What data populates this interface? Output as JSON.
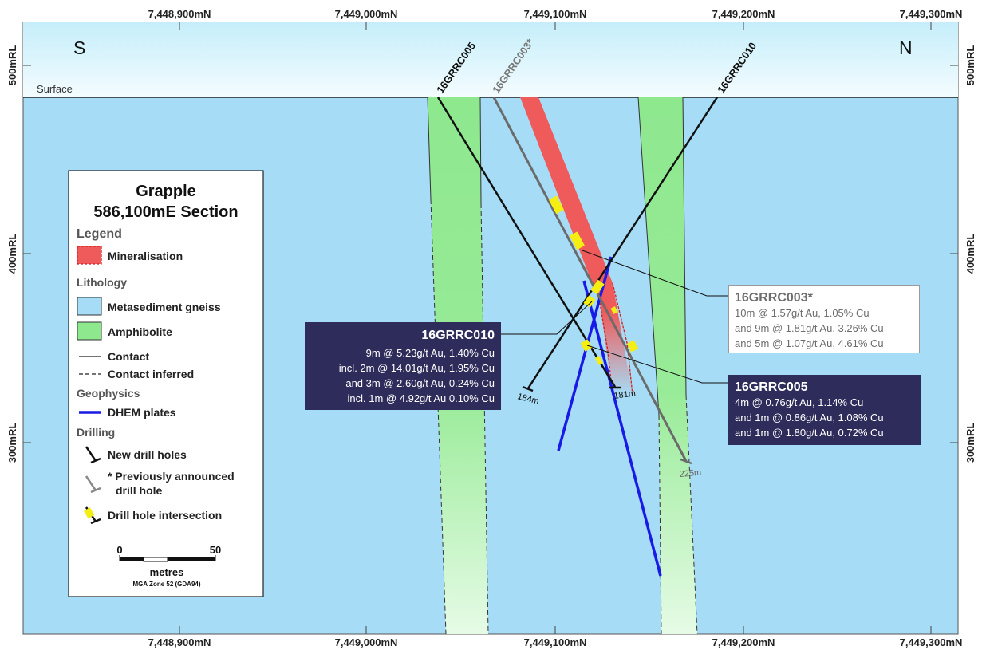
{
  "orientation": {
    "south": "S",
    "north": "N"
  },
  "surface_label": "Surface",
  "northing_ticks": [
    "7,448,900mN",
    "7,449,000mN",
    "7,449,100mN",
    "7,449,200mN",
    "7,449,300mN"
  ],
  "rl_ticks": [
    "500mRL",
    "400mRL",
    "300mRL"
  ],
  "drill_holes": [
    {
      "id": "16GRRC005",
      "end_depth": "181m",
      "status": "new"
    },
    {
      "id": "16GRRC003*",
      "end_depth": "225m",
      "status": "previously announced"
    },
    {
      "id": "16GRRC010",
      "end_depth": "184m",
      "status": "new"
    }
  ],
  "legend": {
    "title_line1": "Grapple",
    "title_line2": "586,100mE Section",
    "legend_heading": "Legend",
    "mineralisation": "Mineralisation",
    "lithology_heading": "Lithology",
    "metasediment": "Metasediment gneiss",
    "amphibolite": "Amphibolite",
    "contact": "Contact",
    "contact_inferred": "Contact inferred",
    "geophysics_heading": "Geophysics",
    "dhem": "DHEM plates",
    "drilling_heading": "Drilling",
    "new_holes": "New drill holes",
    "prev_line1": "* Previously announced",
    "prev_line2": "drill hole",
    "intersection": "Drill hole intersection",
    "scale_start": "0",
    "scale_end": "50",
    "scale_unit": "metres",
    "projection": "MGA Zone 52 (GDA94)"
  },
  "intercepts": {
    "rc010": {
      "title": "16GRRC010",
      "lines": [
        "9m @ 5.23g/t Au, 1.40% Cu",
        "incl. 2m @ 14.01g/t Au, 1.95% Cu",
        "and 3m @ 2.60g/t Au, 0.24% Cu",
        "incl. 1m @ 4.92g/t Au 0.10% Cu"
      ]
    },
    "rc003": {
      "title": "16GRRC003*",
      "lines": [
        "10m @ 1.57g/t Au, 1.05% Cu",
        "and 9m @ 1.81g/t Au, 3.26% Cu",
        "and 5m @ 1.07g/t Au, 4.61% Cu"
      ]
    },
    "rc005": {
      "title": "16GRRC005",
      "lines": [
        "4m @ 0.76g/t Au, 1.14% Cu",
        "and 1m @ 0.86g/t Au, 1.08% Cu",
        "and 1m @ 1.80g/t Au, 0.72% Cu"
      ]
    }
  },
  "colors": {
    "metasediment": "#a6dcf6",
    "amphibolite": "#8ee88e",
    "mineralisation": "#ef5a5a",
    "dhem": "#1a1ae6",
    "intersection": "#f4ee12",
    "info_dark": "#2e2c5a"
  }
}
